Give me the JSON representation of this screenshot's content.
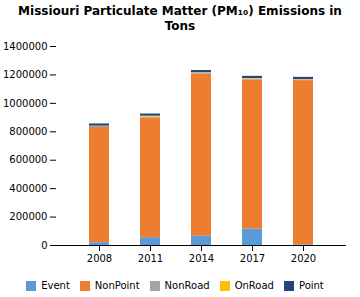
{
  "chart_data": {
    "type": "bar",
    "title": "Missiouri Particulate Matter (PM₁₀) Emissions in Tons",
    "categories": [
      "2008",
      "2011",
      "2014",
      "2017",
      "2020"
    ],
    "stacked": true,
    "series": [
      {
        "name": "Event",
        "color": "#5b9bd5",
        "values": [
          20000,
          55000,
          65000,
          115000,
          5000
        ]
      },
      {
        "name": "NonPoint",
        "color": "#ed7d31",
        "values": [
          810000,
          840000,
          1140000,
          1050000,
          1155000
        ]
      },
      {
        "name": "NonRoad",
        "color": "#a5a5a5",
        "values": [
          8000,
          7000,
          8000,
          7000,
          6000
        ]
      },
      {
        "name": "OnRoad",
        "color": "#ffc000",
        "values": [
          2000,
          8000,
          3000,
          3000,
          2000
        ]
      },
      {
        "name": "Point",
        "color": "#264478",
        "values": [
          15000,
          15000,
          15000,
          15000,
          15000
        ]
      }
    ],
    "ylim": [
      0,
      1400000
    ],
    "yticks": [
      0,
      200000,
      400000,
      600000,
      800000,
      1000000,
      1200000,
      1400000
    ],
    "grid": false,
    "legend": "bottom"
  }
}
